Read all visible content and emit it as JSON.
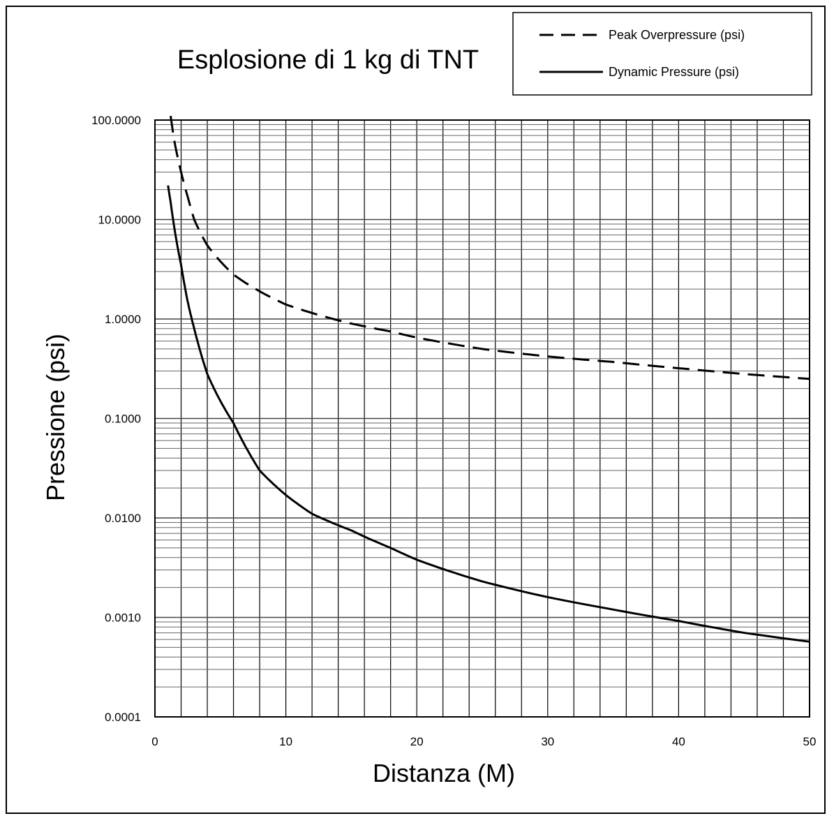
{
  "chart_data": {
    "type": "line",
    "title": "Esplosione di 1 kg di TNT",
    "xlabel": "Distanza (M)",
    "ylabel": "Pressione (psi)",
    "xlim": [
      0,
      50
    ],
    "ylim": [
      0.0001,
      100
    ],
    "y_scale": "log",
    "grid": true,
    "legend_position": "top-right",
    "x_ticks": [
      0,
      10,
      20,
      30,
      40,
      50
    ],
    "x_tick_labels": [
      "0",
      "10",
      "20",
      "30",
      "40",
      "50"
    ],
    "y_ticks": [
      0.0001,
      0.001,
      0.01,
      0.1,
      1,
      10,
      100
    ],
    "y_tick_labels": [
      "0.0001",
      "0.0010",
      "0.0100",
      "0.1000",
      "1.0000",
      "10.0000",
      "100.0000"
    ],
    "series": [
      {
        "name": "Peak Overpressure (psi)",
        "style": "dashed",
        "x": [
          1.2,
          1.5,
          2,
          2.5,
          3,
          4,
          5,
          6,
          8,
          10,
          12,
          15,
          18,
          20,
          25,
          30,
          35,
          40,
          45,
          50
        ],
        "y": [
          110,
          60,
          30,
          17,
          10,
          5.5,
          3.8,
          2.8,
          1.9,
          1.4,
          1.15,
          0.9,
          0.75,
          0.65,
          0.5,
          0.42,
          0.37,
          0.32,
          0.28,
          0.25
        ]
      },
      {
        "name": "Dynamic Pressure (psi)",
        "style": "solid",
        "x": [
          1,
          1.2,
          1.5,
          2,
          2.5,
          3,
          4,
          5,
          6,
          8,
          10,
          12,
          15,
          18,
          20,
          25,
          30,
          35,
          40,
          45,
          50
        ],
        "y": [
          22,
          15,
          8,
          3.5,
          1.5,
          0.8,
          0.28,
          0.15,
          0.09,
          0.03,
          0.017,
          0.011,
          0.0075,
          0.005,
          0.0038,
          0.0023,
          0.0016,
          0.0012,
          0.00092,
          0.0007,
          0.00057
        ]
      }
    ]
  }
}
